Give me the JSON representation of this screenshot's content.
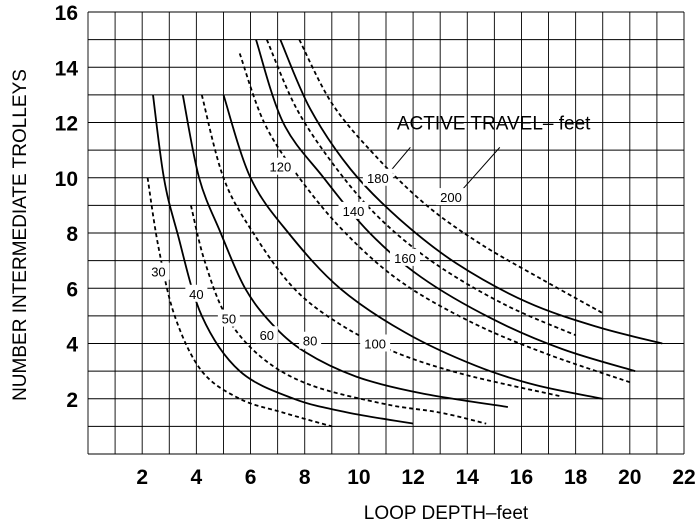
{
  "chart_data": {
    "type": "line",
    "xlabel": "LOOP DEPTH–feet",
    "ylabel": "NUMBER INTERMEDIATE TROLLEYS",
    "xlim": [
      0,
      22
    ],
    "ylim": [
      0,
      16
    ],
    "x_ticks": [
      "2",
      "4",
      "6",
      "8",
      "10",
      "12",
      "14",
      "16",
      "18",
      "20",
      "22"
    ],
    "y_ticks": [
      "2",
      "4",
      "6",
      "8",
      "10",
      "12",
      "14",
      "16"
    ],
    "grid": true,
    "annotation": "ACTIVE TRAVEL– feet",
    "series": [
      {
        "name": "30",
        "style": "dashed",
        "label_at": [
          2.6,
          6.6
        ],
        "points": [
          [
            2.2,
            10
          ],
          [
            2.6,
            7.5
          ],
          [
            3.2,
            5
          ],
          [
            4.2,
            3
          ],
          [
            5.6,
            2
          ],
          [
            7.2,
            1.5
          ],
          [
            9,
            1
          ]
        ]
      },
      {
        "name": "40",
        "style": "solid",
        "label_at": [
          4.0,
          5.8
        ],
        "points": [
          [
            2.4,
            13
          ],
          [
            2.8,
            10
          ],
          [
            3.3,
            8
          ],
          [
            4.2,
            5
          ],
          [
            5.6,
            3
          ],
          [
            7.6,
            2
          ],
          [
            9.6,
            1.5
          ],
          [
            12,
            1.1
          ]
        ]
      },
      {
        "name": "50",
        "style": "dashed",
        "label_at": [
          5.2,
          4.9
        ],
        "points": [
          [
            3.8,
            9
          ],
          [
            4.3,
            7
          ],
          [
            5.1,
            5
          ],
          [
            6.4,
            3.5
          ],
          [
            8.2,
            2.5
          ],
          [
            11,
            1.8
          ],
          [
            13,
            1.5
          ],
          [
            14.7,
            1.1
          ]
        ]
      },
      {
        "name": "60",
        "style": "solid",
        "label_at": [
          6.6,
          4.3
        ],
        "points": [
          [
            3.5,
            13
          ],
          [
            4.1,
            10
          ],
          [
            4.9,
            8
          ],
          [
            5.8,
            6
          ],
          [
            6.8,
            4.7
          ],
          [
            8,
            3.7
          ],
          [
            9.9,
            2.8
          ],
          [
            12.3,
            2.2
          ],
          [
            15.5,
            1.7
          ]
        ]
      },
      {
        "name": "80",
        "style": "dashed",
        "label_at": [
          8.2,
          4.1
        ],
        "points": [
          [
            4.2,
            13
          ],
          [
            5,
            10
          ],
          [
            6.1,
            8
          ],
          [
            7.6,
            6
          ],
          [
            9.3,
            4.7
          ],
          [
            11.3,
            3.7
          ],
          [
            13.8,
            2.9
          ],
          [
            17.4,
            2.1
          ]
        ]
      },
      {
        "name": "100",
        "style": "solid",
        "label_at": [
          10.6,
          4.0
        ],
        "points": [
          [
            5,
            13
          ],
          [
            6,
            10
          ],
          [
            7.4,
            8
          ],
          [
            9.3,
            6
          ],
          [
            11.7,
            4.4
          ],
          [
            14.3,
            3.2
          ],
          [
            16.5,
            2.5
          ],
          [
            19,
            2
          ]
        ]
      },
      {
        "name": "120",
        "style": "dashed",
        "label_at": [
          7.1,
          10.4
        ],
        "points": [
          [
            5.6,
            14.5
          ],
          [
            6.5,
            12
          ],
          [
            7.8,
            10
          ],
          [
            9.5,
            8
          ],
          [
            11.6,
            6.2
          ],
          [
            14.3,
            4.7
          ],
          [
            17,
            3.6
          ],
          [
            20,
            2.6
          ]
        ]
      },
      {
        "name": "140",
        "style": "solid",
        "label_at": [
          9.8,
          8.8
        ],
        "points": [
          [
            6.2,
            15
          ],
          [
            7.2,
            12
          ],
          [
            8.7,
            10
          ],
          [
            10.4,
            8
          ],
          [
            12.3,
            6.4
          ],
          [
            14.9,
            4.9
          ],
          [
            17.5,
            3.8
          ],
          [
            20.2,
            3
          ]
        ]
      },
      {
        "name": "160",
        "style": "dashed",
        "label_at": [
          11.7,
          7.1
        ],
        "points": [
          [
            6.6,
            15
          ],
          [
            7.7,
            12.5
          ],
          [
            9.2,
            10.3
          ],
          [
            10.8,
            8.5
          ],
          [
            12.8,
            6.9
          ],
          [
            15.4,
            5.4
          ],
          [
            18,
            4.3
          ]
        ]
      },
      {
        "name": "180",
        "style": "solid",
        "label_at": [
          10.7,
          10.0
        ],
        "points": [
          [
            7.1,
            15
          ],
          [
            8.2,
            12.5
          ],
          [
            9.7,
            10.3
          ],
          [
            11.5,
            8.5
          ],
          [
            13.6,
            6.9
          ],
          [
            16.2,
            5.5
          ],
          [
            18.8,
            4.6
          ],
          [
            21.2,
            4
          ]
        ]
      },
      {
        "name": "200",
        "style": "dashed",
        "label_at": [
          13.4,
          9.3
        ],
        "points": [
          [
            7.8,
            15
          ],
          [
            9,
            12.7
          ],
          [
            10.6,
            10.8
          ],
          [
            12.5,
            9
          ],
          [
            14.5,
            7.6
          ],
          [
            16.8,
            6.3
          ],
          [
            19,
            5.1
          ]
        ]
      }
    ]
  }
}
